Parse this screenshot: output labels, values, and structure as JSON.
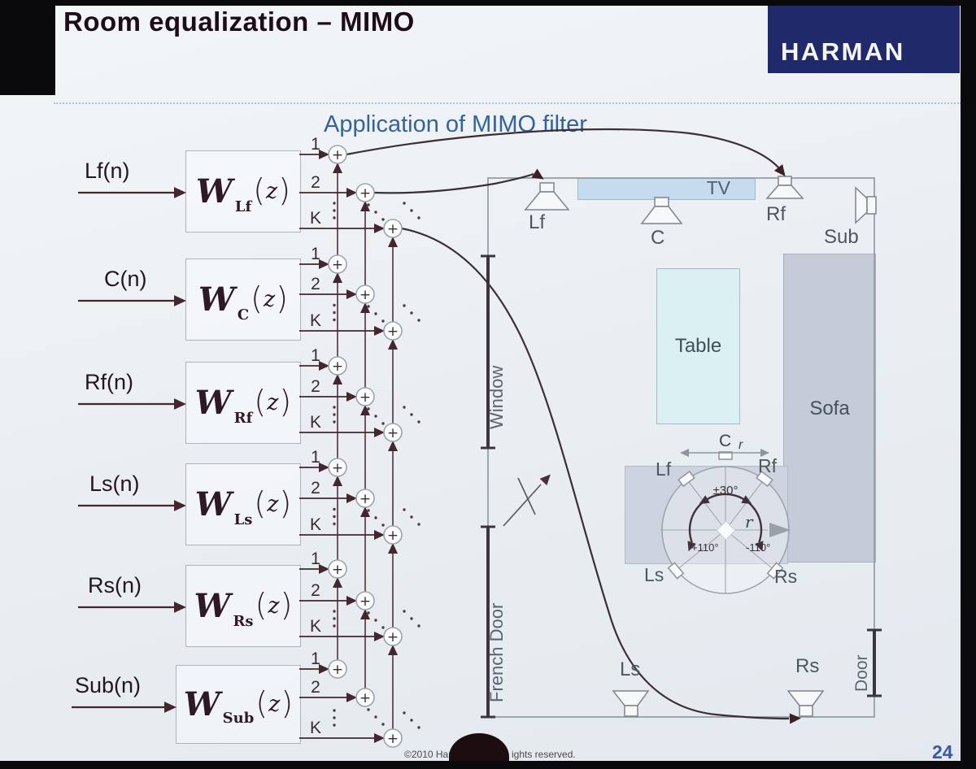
{
  "header": {
    "title": "Room equalization – MIMO",
    "logo_text": "HARMAN"
  },
  "diagram": {
    "heading": "Application of MIMO filter",
    "filter_symbol": {
      "w": "W",
      "open_paren": "(",
      "z": "z",
      "close_paren": ")"
    },
    "tap_labels": [
      "1",
      "2",
      "K"
    ],
    "sum_symbol": "+",
    "filters": [
      {
        "input_label": "Lf(n)",
        "subscript": "Lf"
      },
      {
        "input_label": "C(n)",
        "subscript": "C"
      },
      {
        "input_label": "Rf(n)",
        "subscript": "Rf"
      },
      {
        "input_label": "Ls(n)",
        "subscript": "Ls"
      },
      {
        "input_label": "Rs(n)",
        "subscript": "Rs"
      },
      {
        "input_label": "Sub(n)",
        "subscript": "Sub"
      }
    ]
  },
  "room": {
    "front_speakers": {
      "lf": "Lf",
      "c": "C",
      "rf": "Rf"
    },
    "sub": "Sub",
    "surround_speakers": {
      "ls": "Ls",
      "rs": "Rs"
    },
    "furniture": {
      "tv": "TV",
      "table": "Table",
      "sofa": "Sofa"
    },
    "openings": {
      "window": "Window",
      "french_door": "French Door",
      "door": "Door"
    },
    "listening_area": {
      "lf": "Lf",
      "rf": "Rf",
      "ls": "Ls",
      "rs": "Rs",
      "c_label": "C",
      "r_dim_label": "r",
      "radius_label": "r",
      "front_angle": "±30°",
      "left_angle": "+110°",
      "right_angle": "-110°"
    }
  },
  "frame": {
    "page_number": "24",
    "copyright_prefix": "©2010 Harman",
    "copyright_suffix": "ights reserved."
  },
  "colors": {
    "accent_blue": "#35629d",
    "logo_navy": "#20296a",
    "page_number_blue": "#3a58a6",
    "diagram_stroke": "#44262e",
    "room_stroke": "#8e959d"
  }
}
